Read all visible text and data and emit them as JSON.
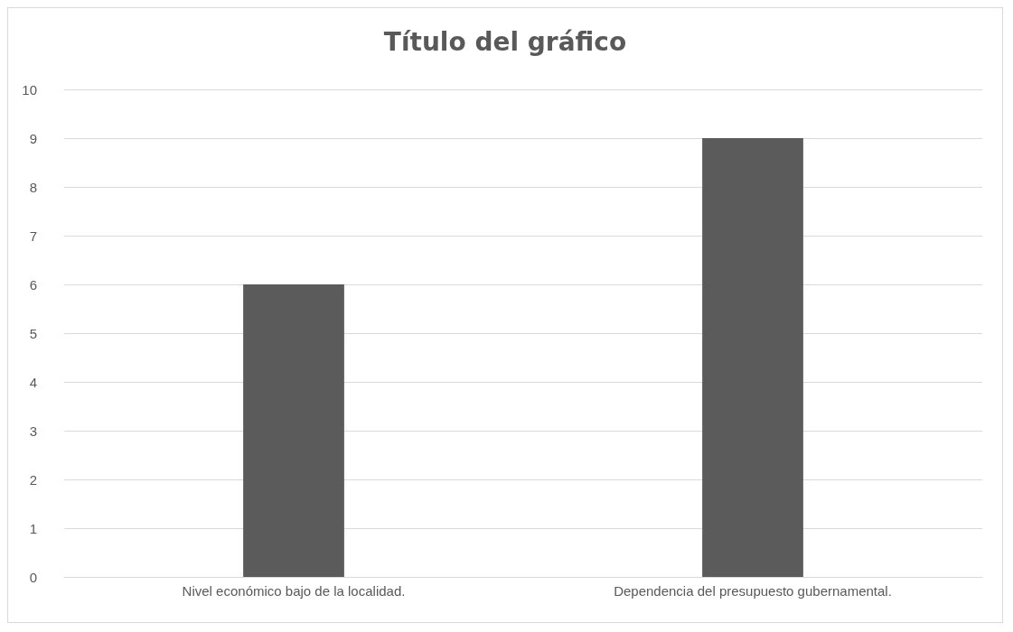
{
  "chart_data": {
    "type": "bar",
    "title": "Título del gráfico",
    "categories": [
      "Nivel económico bajo de la localidad.",
      "Dependencia del presupuesto gubernamental."
    ],
    "values": [
      6,
      9
    ],
    "color": "#5b5b5b",
    "ylim": [
      0,
      10
    ],
    "yticks": [
      0,
      1,
      2,
      3,
      4,
      5,
      6,
      7,
      8,
      9,
      10
    ],
    "grid": "y"
  }
}
